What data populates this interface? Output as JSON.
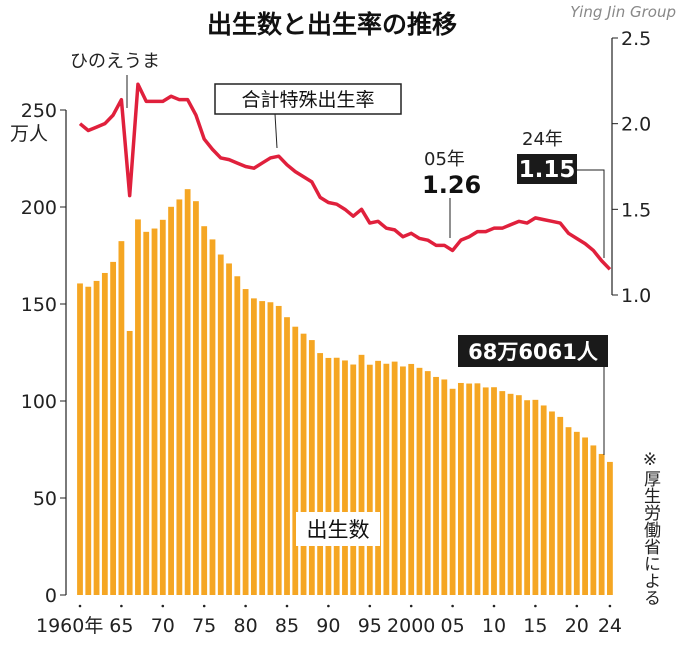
{
  "chart_data": {
    "type": "bar",
    "title": "出生数と出生率の推移",
    "years": [
      1960,
      1961,
      1962,
      1963,
      1964,
      1965,
      1966,
      1967,
      1968,
      1969,
      1970,
      1971,
      1972,
      1973,
      1974,
      1975,
      1976,
      1977,
      1978,
      1979,
      1980,
      1981,
      1982,
      1983,
      1984,
      1985,
      1986,
      1987,
      1988,
      1989,
      1990,
      1991,
      1992,
      1993,
      1994,
      1995,
      1996,
      1997,
      1998,
      1999,
      2000,
      2001,
      2002,
      2003,
      2004,
      2005,
      2006,
      2007,
      2008,
      2009,
      2010,
      2011,
      2012,
      2013,
      2014,
      2015,
      2016,
      2017,
      2018,
      2019,
      2020,
      2021,
      2022,
      2023,
      2024
    ],
    "xtick_labels": [
      "1960年",
      "65",
      "70",
      "75",
      "80",
      "85",
      "90",
      "95",
      "2000",
      "05",
      "10",
      "15",
      "20",
      "24"
    ],
    "series": [
      {
        "name": "出生数",
        "axis": "left",
        "type": "bar",
        "color": "#f5a623",
        "values": [
          160.6,
          158.9,
          161.9,
          166.0,
          171.7,
          182.4,
          136.1,
          193.6,
          187.2,
          188.9,
          193.4,
          200.1,
          203.9,
          209.2,
          203.0,
          190.1,
          183.3,
          175.5,
          170.9,
          164.3,
          157.7,
          152.9,
          151.5,
          150.9,
          149.0,
          143.2,
          138.3,
          134.7,
          131.4,
          124.7,
          122.2,
          122.3,
          120.9,
          118.8,
          123.8,
          118.7,
          120.7,
          119.2,
          120.3,
          117.8,
          119.1,
          117.1,
          115.4,
          112.4,
          111.1,
          106.3,
          109.3,
          109.0,
          109.1,
          107.0,
          107.1,
          105.1,
          103.7,
          103.0,
          100.4,
          100.6,
          97.7,
          94.6,
          91.8,
          86.5,
          84.1,
          81.2,
          77.1,
          72.7,
          68.6
        ]
      },
      {
        "name": "合計特殊出生率",
        "axis": "right",
        "type": "line",
        "color": "#e0203c",
        "values": [
          2.0,
          1.96,
          1.98,
          2.0,
          2.05,
          2.14,
          1.58,
          2.23,
          2.13,
          2.13,
          2.13,
          2.16,
          2.14,
          2.14,
          2.05,
          1.91,
          1.85,
          1.8,
          1.79,
          1.77,
          1.75,
          1.74,
          1.77,
          1.8,
          1.81,
          1.76,
          1.72,
          1.69,
          1.66,
          1.57,
          1.54,
          1.53,
          1.5,
          1.46,
          1.5,
          1.42,
          1.43,
          1.39,
          1.38,
          1.34,
          1.36,
          1.33,
          1.32,
          1.29,
          1.29,
          1.26,
          1.32,
          1.34,
          1.37,
          1.37,
          1.39,
          1.39,
          1.41,
          1.43,
          1.42,
          1.45,
          1.44,
          1.43,
          1.42,
          1.36,
          1.33,
          1.3,
          1.26,
          1.2,
          1.15
        ]
      }
    ],
    "left_axis": {
      "ylim": [
        0,
        250
      ],
      "ticks": [
        "0",
        "50",
        "100",
        "150",
        "200",
        "250"
      ],
      "unit": "万人"
    },
    "right_axis": {
      "ylim": [
        1.0,
        2.5
      ],
      "ticks": [
        "1.0",
        "1.5",
        "2.0",
        "2.5"
      ]
    },
    "annotations": {
      "hinoeuma": "ひのえうま",
      "tfr_label": "合計特殊出生率",
      "births_label": "出生数",
      "y05_year": "05年",
      "y05_value": "1.26",
      "y24_year": "24年",
      "y24_value": "1.15",
      "births_2024": "68万6061人",
      "source": "※厚生労働省による",
      "watermark": "Ying Jin Group"
    }
  }
}
